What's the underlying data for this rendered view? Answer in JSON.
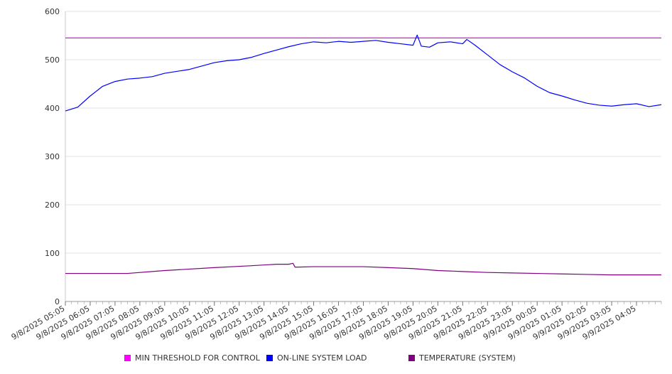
{
  "chart_data": {
    "type": "line",
    "title": "",
    "xlabel": "",
    "ylabel": "",
    "ylim": [
      0,
      600
    ],
    "y_ticks": [
      0,
      100,
      200,
      300,
      400,
      500,
      600
    ],
    "grid": "horizontal",
    "legend_position": "bottom",
    "x_tick_labels": [
      "9/8/2025 05:05",
      "9/8/2025 06:05",
      "9/8/2025 07:05",
      "9/8/2025 08:05",
      "9/8/2025 09:05",
      "9/8/2025 10:05",
      "9/8/2025 11:05",
      "9/8/2025 12:05",
      "9/8/2025 13:05",
      "9/8/2025 14:05",
      "9/8/2025 15:05",
      "9/8/2025 16:05",
      "9/8/2025 17:05",
      "9/8/2025 18:05",
      "9/8/2025 19:05",
      "9/8/2025 20:05",
      "9/8/2025 21:05",
      "9/8/2025 22:05",
      "9/8/2025 23:05",
      "9/9/2025 00:05",
      "9/9/2025 01:05",
      "9/9/2025 02:05",
      "9/9/2025 03:05",
      "9/9/2025 04:05"
    ],
    "x_start": "9/8/2025 05:05",
    "x_end": "9/9/2025 05:05",
    "series": [
      {
        "name": "MIN THRESHOLD FOR CONTROL",
        "color": "#ff00ff",
        "points": [
          [
            "9/8/2025 05:05",
            545
          ],
          [
            "9/9/2025 05:05",
            545
          ]
        ]
      },
      {
        "name": "ON-LINE SYSTEM LOAD",
        "color": "#0000ff",
        "points": [
          [
            "9/8/2025 05:05",
            394
          ],
          [
            "9/8/2025 05:35",
            402
          ],
          [
            "9/8/2025 06:05",
            425
          ],
          [
            "9/8/2025 06:35",
            445
          ],
          [
            "9/8/2025 07:05",
            455
          ],
          [
            "9/8/2025 07:35",
            460
          ],
          [
            "9/8/2025 08:05",
            462
          ],
          [
            "9/8/2025 08:35",
            465
          ],
          [
            "9/8/2025 09:05",
            472
          ],
          [
            "9/8/2025 09:35",
            476
          ],
          [
            "9/8/2025 10:05",
            480
          ],
          [
            "9/8/2025 10:35",
            487
          ],
          [
            "9/8/2025 11:05",
            494
          ],
          [
            "9/8/2025 11:35",
            498
          ],
          [
            "9/8/2025 12:05",
            500
          ],
          [
            "9/8/2025 12:35",
            505
          ],
          [
            "9/8/2025 13:05",
            513
          ],
          [
            "9/8/2025 13:35",
            520
          ],
          [
            "9/8/2025 14:05",
            527
          ],
          [
            "9/8/2025 14:35",
            533
          ],
          [
            "9/8/2025 15:05",
            537
          ],
          [
            "9/8/2025 15:35",
            535
          ],
          [
            "9/8/2025 16:05",
            538
          ],
          [
            "9/8/2025 16:35",
            536
          ],
          [
            "9/8/2025 17:05",
            538
          ],
          [
            "9/8/2025 17:35",
            540
          ],
          [
            "9/8/2025 18:05",
            536
          ],
          [
            "9/8/2025 18:35",
            533
          ],
          [
            "9/8/2025 19:05",
            530
          ],
          [
            "9/8/2025 19:15",
            551
          ],
          [
            "9/8/2025 19:25",
            528
          ],
          [
            "9/8/2025 19:45",
            526
          ],
          [
            "9/8/2025 20:05",
            535
          ],
          [
            "9/8/2025 20:35",
            537
          ],
          [
            "9/8/2025 21:05",
            533
          ],
          [
            "9/8/2025 21:15",
            542
          ],
          [
            "9/8/2025 21:35",
            530
          ],
          [
            "9/8/2025 22:05",
            510
          ],
          [
            "9/8/2025 22:35",
            490
          ],
          [
            "9/8/2025 23:05",
            475
          ],
          [
            "9/8/2025 23:35",
            462
          ],
          [
            "9/9/2025 00:05",
            445
          ],
          [
            "9/9/2025 00:35",
            432
          ],
          [
            "9/9/2025 01:05",
            425
          ],
          [
            "9/9/2025 01:35",
            417
          ],
          [
            "9/9/2025 02:05",
            410
          ],
          [
            "9/9/2025 02:35",
            406
          ],
          [
            "9/9/2025 03:05",
            404
          ],
          [
            "9/9/2025 03:35",
            407
          ],
          [
            "9/9/2025 04:05",
            409
          ],
          [
            "9/9/2025 04:35",
            403
          ],
          [
            "9/9/2025 05:05",
            407
          ]
        ]
      },
      {
        "name": "TEMPERATURE (SYSTEM)",
        "color": "#800080",
        "points": [
          [
            "9/8/2025 05:05",
            58
          ],
          [
            "9/8/2025 07:35",
            58
          ],
          [
            "9/8/2025 09:05",
            64
          ],
          [
            "9/8/2025 11:05",
            70
          ],
          [
            "9/8/2025 12:35",
            74
          ],
          [
            "9/8/2025 13:35",
            77
          ],
          [
            "9/8/2025 14:05",
            77
          ],
          [
            "9/8/2025 14:15",
            79
          ],
          [
            "9/8/2025 14:20",
            71
          ],
          [
            "9/8/2025 15:05",
            72
          ],
          [
            "9/8/2025 16:05",
            72
          ],
          [
            "9/8/2025 17:05",
            72
          ],
          [
            "9/8/2025 18:05",
            70
          ],
          [
            "9/8/2025 19:05",
            68
          ],
          [
            "9/8/2025 20:05",
            64
          ],
          [
            "9/8/2025 21:05",
            62
          ],
          [
            "9/8/2025 22:05",
            60
          ],
          [
            "9/8/2025 23:05",
            59
          ],
          [
            "9/9/2025 00:05",
            58
          ],
          [
            "9/9/2025 01:05",
            57
          ],
          [
            "9/9/2025 02:05",
            56
          ],
          [
            "9/9/2025 03:05",
            55
          ],
          [
            "9/9/2025 04:05",
            55
          ],
          [
            "9/9/2025 05:05",
            55
          ]
        ]
      }
    ]
  }
}
